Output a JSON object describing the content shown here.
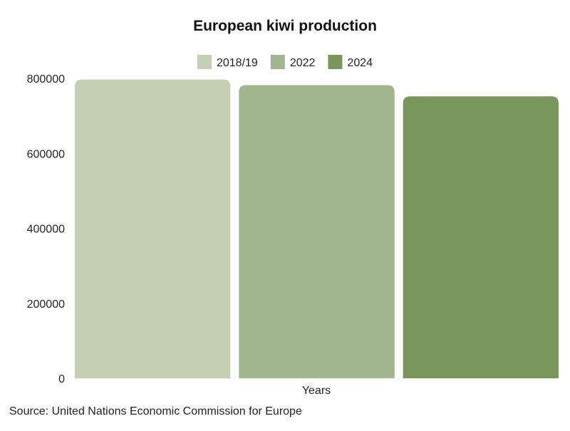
{
  "chart_data": {
    "type": "bar",
    "title": "European kiwi production",
    "xlabel": "Years",
    "ylabel": "",
    "categories": [
      "Years"
    ],
    "series": [
      {
        "name": "2018/19",
        "values": [
          797000
        ],
        "color": "#c3d0b3"
      },
      {
        "name": "2022",
        "values": [
          782000
        ],
        "color": "#a1b68c"
      },
      {
        "name": "2024",
        "values": [
          752000
        ],
        "color": "#789659"
      }
    ],
    "ylim": [
      0,
      800000
    ],
    "yticks": [
      0,
      200000,
      400000,
      600000,
      800000
    ],
    "ytick_labels": [
      "0",
      "200000",
      "400000",
      "600000",
      "800000"
    ],
    "grid": false,
    "legend_position": "top-center"
  },
  "source": "Source: United Nations Economic Commission for Europe"
}
